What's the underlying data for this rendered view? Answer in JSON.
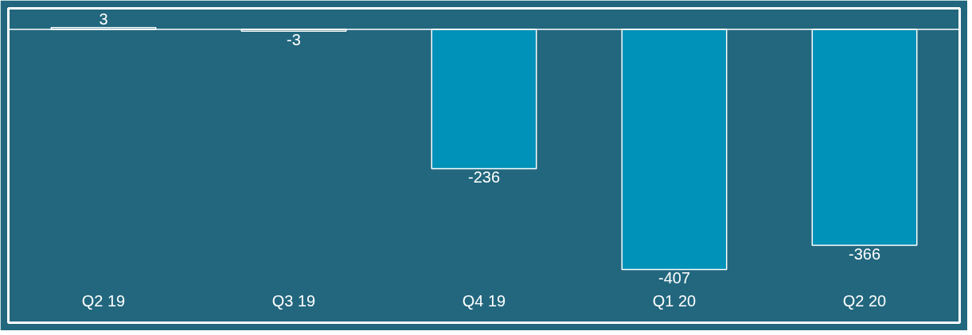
{
  "chart_data": {
    "type": "bar",
    "categories": [
      "Q2 19",
      "Q3 19",
      "Q4 19",
      "Q1 20",
      "Q2 20"
    ],
    "values": [
      3,
      -3,
      -236,
      -407,
      -366
    ],
    "colors": [
      "#1e5f75",
      "#1f6278",
      "#0092b8",
      "#0092b8",
      "#0092b8"
    ],
    "data_labels": true,
    "grid": false
  }
}
